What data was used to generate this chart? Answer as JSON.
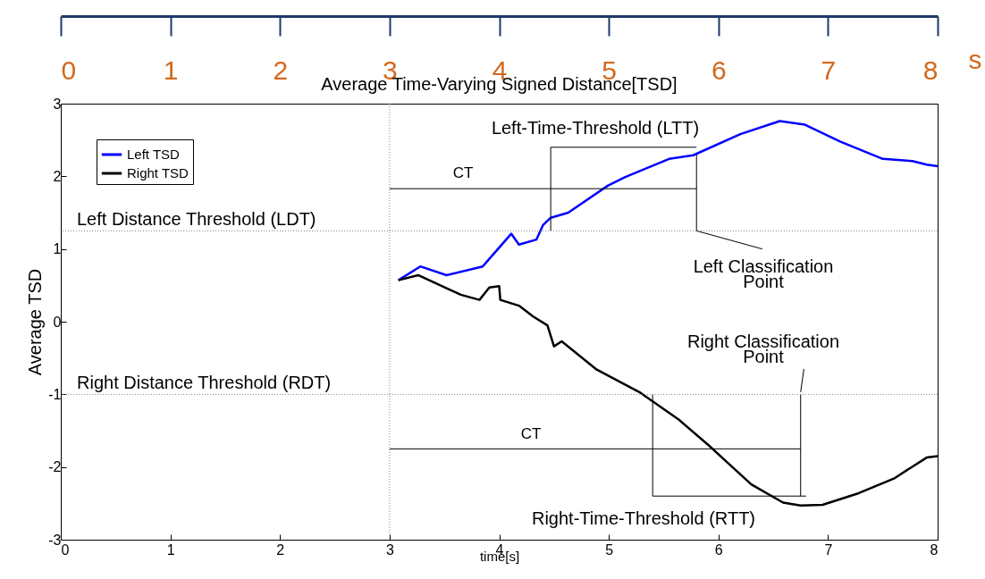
{
  "chart_data": {
    "type": "line",
    "title": "Average Time-Varying Signed Distance[TSD]",
    "xlabel": "time[s]",
    "ylabel": "Average TSD",
    "x2label": "s",
    "xlim": [
      0,
      8
    ],
    "xticks": [
      0,
      1,
      2,
      3,
      4,
      5,
      6,
      7,
      8
    ],
    "ylim": [
      -3,
      3
    ],
    "yticks": [
      -3,
      -2,
      -1,
      0,
      1,
      2,
      3
    ],
    "x2lim": [
      0,
      8
    ],
    "x2ticks": [
      0,
      1,
      2,
      3,
      4,
      5,
      6,
      7,
      8
    ],
    "legend": "top left",
    "grid": false,
    "line_style": "solid",
    "series": [
      {
        "name": "Left TSD",
        "color": "#0000ff",
        "x": [
          3.08,
          3.28,
          3.52,
          3.85,
          4.11,
          4.18,
          4.34,
          4.4,
          4.47,
          4.63,
          4.99,
          5.15,
          5.55,
          5.77,
          6.2,
          6.56,
          6.79,
          7.11,
          7.5,
          7.77,
          7.9,
          8.0
        ],
        "values": [
          0.57,
          0.76,
          0.64,
          0.76,
          1.21,
          1.06,
          1.13,
          1.33,
          1.43,
          1.5,
          1.87,
          1.99,
          2.24,
          2.29,
          2.58,
          2.76,
          2.71,
          2.48,
          2.24,
          2.21,
          2.16,
          2.14
        ]
      },
      {
        "name": "Right TSD",
        "color": "#000000",
        "x": [
          3.08,
          3.26,
          3.65,
          3.82,
          3.91,
          4.0,
          4.01,
          4.18,
          4.31,
          4.44,
          4.5,
          4.57,
          4.89,
          5.29,
          5.64,
          5.91,
          6.3,
          6.59,
          6.75,
          6.95,
          7.28,
          7.6,
          7.9,
          8.0
        ],
        "values": [
          0.57,
          0.64,
          0.37,
          0.3,
          0.47,
          0.49,
          0.3,
          0.22,
          0.07,
          -0.05,
          -0.34,
          -0.27,
          -0.66,
          -0.98,
          -1.35,
          -1.7,
          -2.24,
          -2.49,
          -2.53,
          -2.52,
          -2.36,
          -2.16,
          -1.87,
          -1.85
        ]
      },
      {
        "color": "#000000",
        "x": [
          3,
          5.8
        ],
        "values": [
          1.83,
          1.83
        ]
      },
      {
        "color": "#000000",
        "x": [
          4.47,
          5.8
        ],
        "values": [
          2.4,
          2.4
        ]
      },
      {
        "color": "#000000",
        "x": [
          4.47,
          4.47
        ],
        "values": [
          2.4,
          1.25
        ]
      },
      {
        "color": "#000000",
        "x": [
          5.8,
          5.8
        ],
        "values": [
          2.3,
          1.25
        ]
      },
      {
        "color": "#000000",
        "x": [
          5.8,
          6.4
        ],
        "values": [
          1.25,
          1.0
        ]
      },
      {
        "color": "#000000",
        "x": [
          3,
          6.75
        ],
        "values": [
          -1.75,
          -1.75
        ]
      },
      {
        "color": "#000000",
        "x": [
          5.4,
          6.8
        ],
        "values": [
          -2.4,
          -2.4
        ]
      },
      {
        "color": "#000000",
        "x": [
          5.4,
          5.4
        ],
        "values": [
          -1.0,
          -2.4
        ]
      },
      {
        "color": "#000000",
        "x": [
          6.75,
          6.75
        ],
        "values": [
          -1.0,
          -2.4
        ]
      },
      {
        "color": "#000000",
        "x": [
          6.75,
          6.78
        ],
        "values": [
          -0.97,
          -0.65
        ]
      }
    ],
    "ref_lines": [
      {
        "axis": "y",
        "value": 1.25,
        "label": "Left Distance Threshold (LDT)",
        "color": "#808080",
        "line_style": "dotted"
      },
      {
        "axis": "y",
        "value": -1,
        "label": "Right Distance Threshold (RDT)",
        "color": "#808080",
        "line_style": "dotted"
      },
      {
        "axis": "x",
        "value": 3,
        "color": "#808080",
        "line_style": "dotted"
      }
    ],
    "annotations": [
      "Left-Time-Threshold (LTT)",
      "CT",
      "Left Classification\nPoint",
      "Right Classification\nPoint",
      "CT",
      "Right-Time-Threshold (RTT)"
    ]
  }
}
